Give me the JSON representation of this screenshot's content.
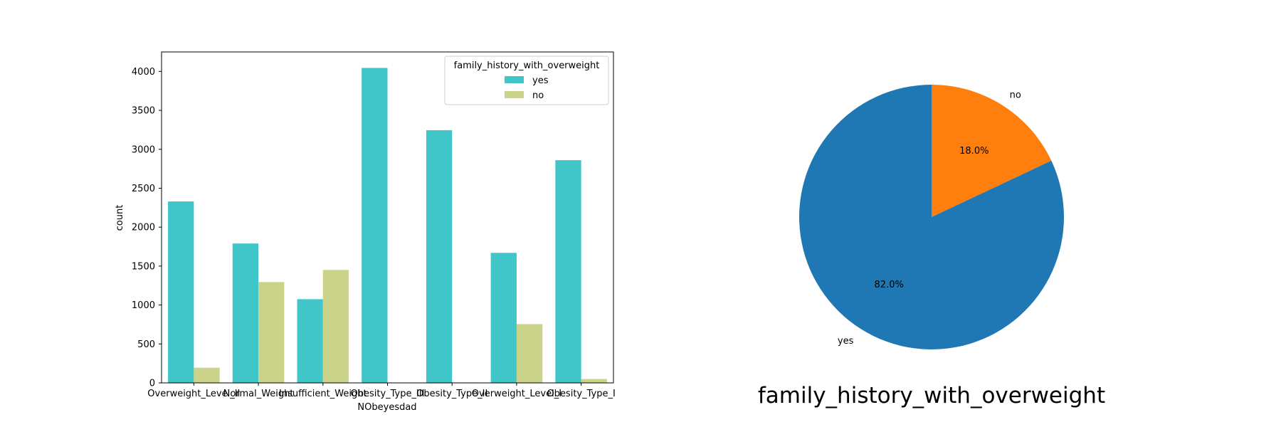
{
  "chart_data": [
    {
      "type": "bar",
      "xlabel": "NObeyesdad",
      "ylabel": "count",
      "categories": [
        "Overweight_Level_II",
        "Normal_Weight",
        "Insufficient_Weight",
        "Obesity_Type_III",
        "Obesity_Type_II",
        "Overweight_Level_I",
        "Obesity_Type_I"
      ],
      "category_labels_visible": [
        "Overweight_Level_II",
        "Normal_Weight",
        "Insufficient_Weight",
        "Obesity_Type_III",
        "Obesity_Type_II",
        "Overweight_Level_I",
        "Obesity_Type_I"
      ],
      "series": [
        {
          "name": "yes",
          "color": "#40c6c8",
          "values": [
            2330,
            1790,
            1075,
            4045,
            3245,
            1670,
            2860
          ]
        },
        {
          "name": "no",
          "color": "#cad389",
          "values": [
            195,
            1295,
            1450,
            0,
            5,
            755,
            50
          ]
        }
      ],
      "legend": {
        "title": "family_history_with_overweight",
        "placement": "top-right"
      },
      "ylim": [
        0,
        4250
      ],
      "yticks": [
        0,
        500,
        1000,
        1500,
        2000,
        2500,
        3000,
        3500,
        4000
      ],
      "grid": false
    },
    {
      "type": "pie",
      "title": "family_history_with_overweight",
      "slices": [
        {
          "label": "no",
          "value": 18.0,
          "pct_label": "18.0%",
          "color": "#ff7f0e"
        },
        {
          "label": "yes",
          "value": 82.0,
          "pct_label": "82.0%",
          "color": "#1f77b4"
        }
      ],
      "start_angle_deg": 90,
      "direction": "clockwise"
    }
  ]
}
